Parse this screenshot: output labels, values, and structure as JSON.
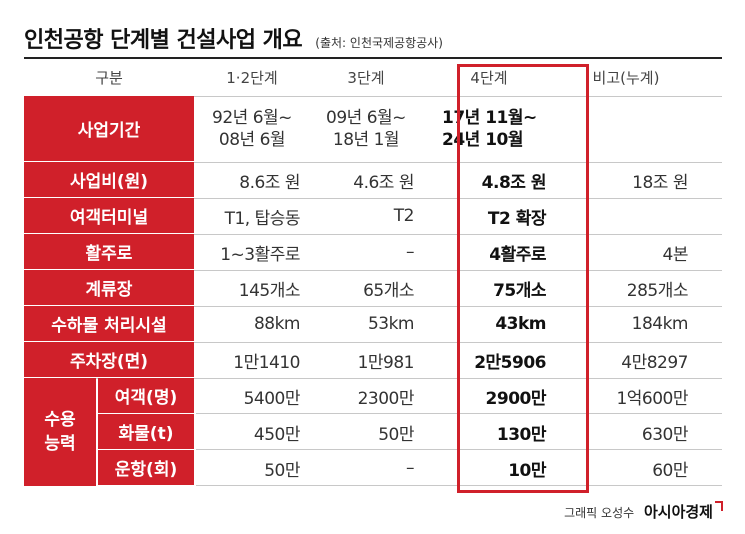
{
  "title": "인천공항 단계별 건설사업 개요",
  "source": "(출처: 인천국제공항공사)",
  "columns": [
    "구분",
    "1·2단계",
    "3단계",
    "4단계",
    "비고(누계)"
  ],
  "rows": [
    {
      "label": "사업기간",
      "v": [
        [
          "92년 6월~",
          "08년 6월"
        ],
        [
          "09년 6월~",
          "18년 1월"
        ],
        [
          "17년 11월~",
          "24년 10월"
        ],
        [
          ""
        ]
      ]
    },
    {
      "label": "사업비(원)",
      "v": [
        "8.6조 원",
        "4.6조 원",
        "4.8조 원",
        "18조 원"
      ]
    },
    {
      "label": "여객터미널",
      "v": [
        "T1, 탑승동",
        "T2",
        "T2 확장",
        ""
      ]
    },
    {
      "label": "활주로",
      "v": [
        "1~3활주로",
        "–",
        "4활주로",
        "4본"
      ]
    },
    {
      "label": "계류장",
      "v": [
        "145개소",
        "65개소",
        "75개소",
        "285개소"
      ]
    },
    {
      "label": "수하물 처리시설",
      "v": [
        "88km",
        "53km",
        "43km",
        "184km"
      ]
    },
    {
      "label": "주차장(면)",
      "v": [
        "1만1410",
        "1만981",
        "2만5906",
        "4만8297"
      ]
    }
  ],
  "capacity": {
    "label_line1": "수용",
    "label_line2": "능력",
    "rows": [
      {
        "label": "여객(명)",
        "v": [
          "5400만",
          "2300만",
          "2900만",
          "1억600만"
        ]
      },
      {
        "label": "화물(t)",
        "v": [
          "450만",
          "50만",
          "130만",
          "630만"
        ]
      },
      {
        "label": "운항(회)",
        "v": [
          "50만",
          "–",
          "10만",
          "60만"
        ]
      }
    ]
  },
  "credit": "그래픽 오성수",
  "brand": "아시아경제",
  "accent_color": "#d0202a"
}
